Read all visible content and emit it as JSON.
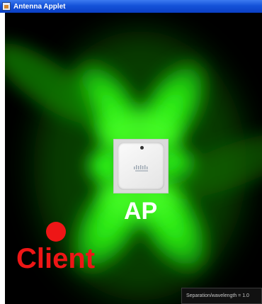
{
  "window": {
    "title": "Antenna Applet",
    "title_bar_color": "#1452d8",
    "icon": "java-applet-icon"
  },
  "canvas": {
    "background": "#000000",
    "radiation_color": "#27e610",
    "ap_label": "AP",
    "client_label": "Client",
    "client_color": "#ee1616",
    "ap_device_icon": "cisco-access-point",
    "status_text": "Separation/wavelength = 1.0"
  }
}
